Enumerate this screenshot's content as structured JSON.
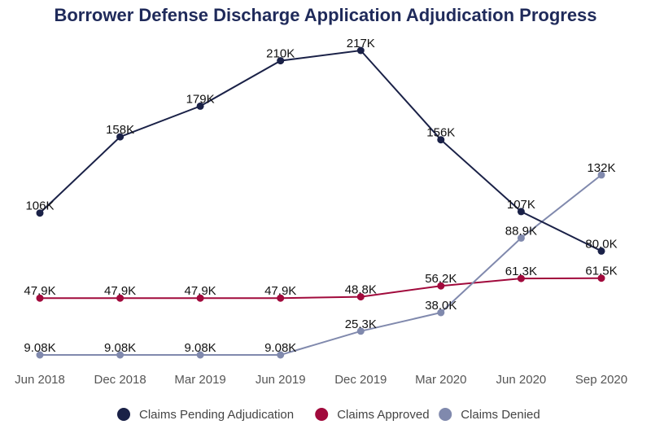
{
  "title": "Borrower Defense Discharge Application Adjudication Progress",
  "colors": {
    "pending": "#1a2147",
    "approved": "#a10a3c",
    "denied": "#8089ad",
    "title": "#1f2a5a"
  },
  "chart_data": {
    "type": "line",
    "title": "Borrower Defense Discharge Application Adjudication Progress",
    "xlabel": "",
    "ylabel": "",
    "categories": [
      "Jun 2018",
      "Dec 2018",
      "Mar 2019",
      "Jun 2019",
      "Dec 2019",
      "Mar 2020",
      "Jun 2020",
      "Sep 2020"
    ],
    "ylim": [
      0,
      230000
    ],
    "grid": false,
    "legend_position": "bottom",
    "series": [
      {
        "name": "Claims Pending Adjudication",
        "values": [
          106000,
          158000,
          179000,
          210000,
          217000,
          156000,
          107000,
          80000
        ],
        "labels": [
          "106K",
          "158K",
          "179K",
          "210K",
          "217K",
          "156K",
          "107K",
          "80.0K"
        ]
      },
      {
        "name": "Claims Approved",
        "values": [
          47900,
          47900,
          47900,
          47900,
          48800,
          56200,
          61300,
          61500
        ],
        "labels": [
          "47.9K",
          "47.9K",
          "47.9K",
          "47.9K",
          "48.8K",
          "56.2K",
          "61.3K",
          "61.5K"
        ]
      },
      {
        "name": "Claims Denied",
        "values": [
          9080,
          9080,
          9080,
          9080,
          25300,
          38000,
          88900,
          132000
        ],
        "labels": [
          "9.08K",
          "9.08K",
          "9.08K",
          "9.08K",
          "25.3K",
          "38.0K",
          "88.9K",
          "132K"
        ]
      }
    ]
  }
}
